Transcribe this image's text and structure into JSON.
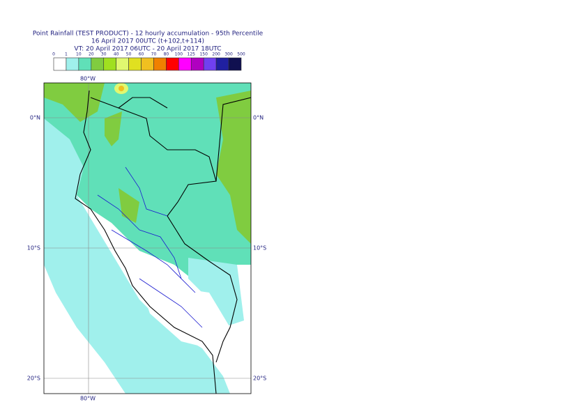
{
  "header": {
    "title": [
      "Point Rainfall (TEST PRODUCT) - 12 hourly accumulation - 95th Percentile",
      "16 April 2017 00UTC (t+102,t+114)",
      "VT: 20 April 2017 06UTC - 20 April 2017 18UTC"
    ]
  },
  "legend": {
    "thresholds": [
      0,
      1,
      10,
      20,
      30,
      40,
      50,
      60,
      70,
      80,
      100,
      125,
      150,
      200,
      300,
      500
    ],
    "colors": [
      "#ffffff",
      "#a0f0ec",
      "#60e0b8",
      "#80cc40",
      "#a0e020",
      "#e0f870",
      "#e0e020",
      "#f0c020",
      "#f08000",
      "#ff0000",
      "#ff00ff",
      "#b000c0",
      "#7040f0",
      "#2020a0",
      "#101050"
    ]
  },
  "graticule": {
    "longitudes": [
      "80°W"
    ],
    "latitudes": [
      "0°N",
      "10°S",
      "20°S"
    ]
  }
}
